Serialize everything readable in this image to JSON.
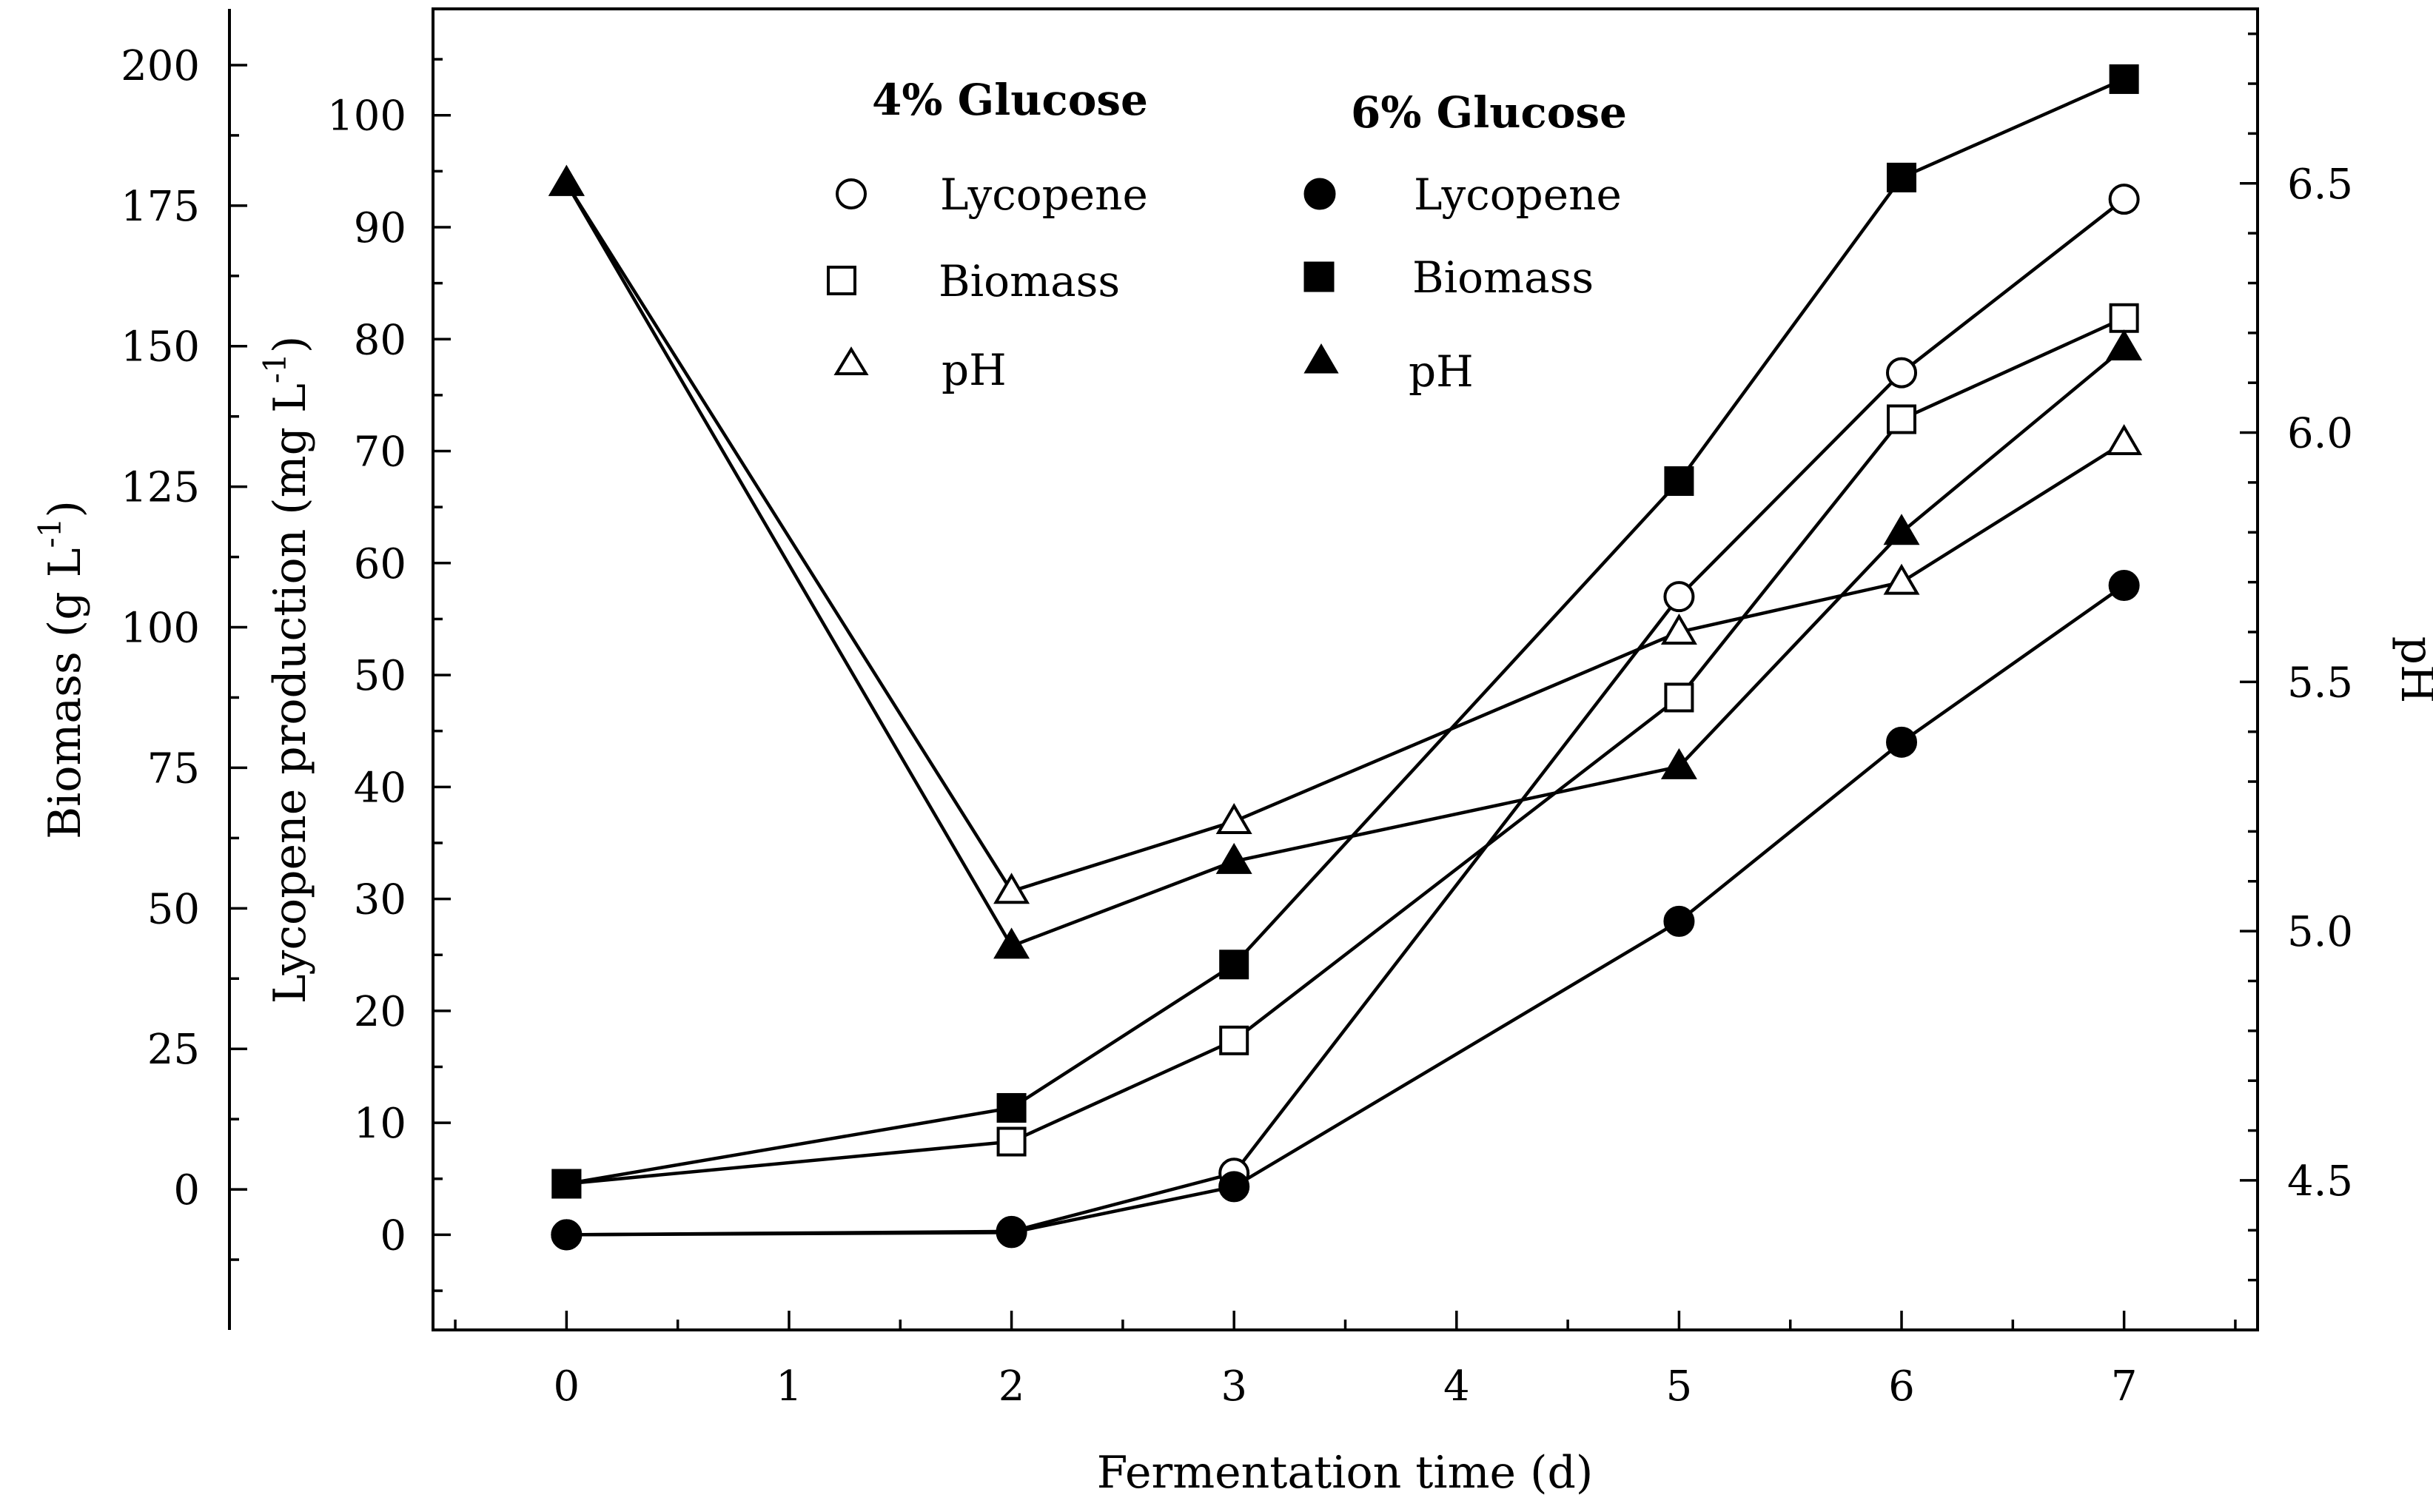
{
  "chart_data": {
    "type": "line",
    "xlabel": "Fermentation time (d)",
    "ylabel_left": "Biomass (g L",
    "ylabel_left_sup": "-1",
    "ylabel_left_close": ")",
    "ylabel_mid": "Lycopene production (mg L",
    "ylabel_mid_sup": "-1",
    "ylabel_mid_close": ")",
    "ylabel_right": "pH",
    "x_ticks": [
      0,
      1,
      2,
      3,
      4,
      5,
      6,
      7
    ],
    "x_range": [
      -0.6,
      7.6
    ],
    "biomass_ticks": [
      0,
      25,
      50,
      75,
      100,
      125,
      150,
      175,
      200
    ],
    "biomass_range": [
      -25,
      210
    ],
    "lycopene_ticks": [
      0,
      10,
      20,
      30,
      40,
      50,
      60,
      70,
      80,
      90,
      100
    ],
    "lycopene_range": [
      -8.5,
      109.5
    ],
    "ph_ticks": [
      4.5,
      5.0,
      5.5,
      6.0,
      6.5
    ],
    "ph_tick_labels": [
      "4.5",
      "5.0",
      "5.5",
      "6.0",
      "6.5"
    ],
    "ph_range": [
      4.2,
      6.85
    ],
    "legend": {
      "group1_title": "4% Glucose",
      "group2_title": "6% Glucose",
      "labels": [
        "Lycopene",
        "Biomass",
        "pH"
      ]
    },
    "series": [
      {
        "name": "Lycopene",
        "group": "4% Glucose",
        "marker": "circle",
        "filled": false,
        "axis": "lycopene",
        "x": [
          0,
          2,
          3,
          5,
          6,
          7
        ],
        "values": [
          0,
          0.3,
          5.5,
          57,
          77,
          92.5
        ]
      },
      {
        "name": "Lycopene",
        "group": "6% Glucose",
        "marker": "circle",
        "filled": true,
        "axis": "lycopene",
        "x": [
          0,
          2,
          3,
          5,
          6,
          7
        ],
        "values": [
          0,
          0.2,
          4.3,
          28,
          44,
          58
        ]
      },
      {
        "name": "Biomass",
        "group": "4% Glucose",
        "marker": "square",
        "filled": false,
        "axis": "biomass",
        "x": [
          0,
          2,
          3,
          5,
          6,
          7
        ],
        "values": [
          1,
          8.5,
          26.5,
          87.5,
          137,
          155
        ]
      },
      {
        "name": "Biomass",
        "group": "6% Glucose",
        "marker": "square",
        "filled": true,
        "axis": "biomass",
        "x": [
          0,
          2,
          3,
          5,
          6,
          7
        ],
        "values": [
          1,
          14.5,
          40,
          126,
          180,
          197.5
        ]
      },
      {
        "name": "pH",
        "group": "4% Glucose",
        "marker": "triangle",
        "filled": false,
        "axis": "ph",
        "x": [
          0,
          2,
          3,
          5,
          6,
          7
        ],
        "values": [
          6.5,
          5.08,
          5.22,
          5.6,
          5.7,
          5.98
        ]
      },
      {
        "name": "pH",
        "group": "6% Glucose",
        "marker": "triangle",
        "filled": true,
        "axis": "ph",
        "x": [
          0,
          2,
          3,
          5,
          6,
          7
        ],
        "values": [
          6.5,
          4.97,
          5.14,
          5.33,
          5.8,
          6.17
        ]
      }
    ]
  }
}
